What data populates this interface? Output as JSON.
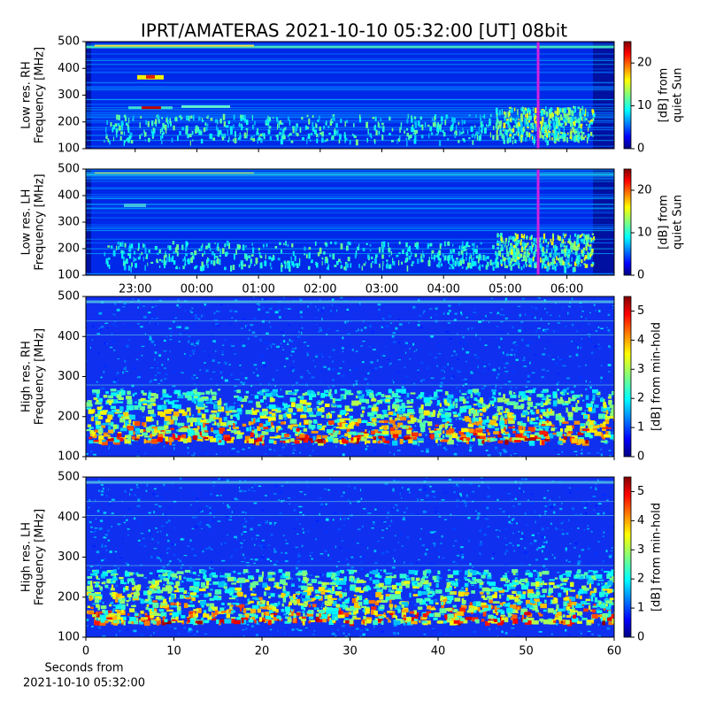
{
  "title": "IPRT/AMATERAS 2021-10-10 05:32:00 [UT]   08bit",
  "chart_data": [
    {
      "type": "heatmap",
      "ylabel": [
        "Low res. RH",
        "Frequency [MHz]"
      ],
      "ylim": [
        100,
        500
      ],
      "yticks": [
        100,
        200,
        300,
        400,
        500
      ],
      "xlim": [
        "22:12",
        "06:46"
      ],
      "colorbar_label": [
        "[dB] from",
        "quiet Sun"
      ],
      "clim": [
        0,
        25
      ],
      "cticks": [
        0,
        10,
        20
      ],
      "colormap": "jet",
      "marker": {
        "x": "05:32",
        "color": "#d020e0"
      }
    },
    {
      "type": "heatmap",
      "ylabel": [
        "Low res. LH",
        "Frequency [MHz]"
      ],
      "ylim": [
        100,
        500
      ],
      "yticks": [
        100,
        200,
        300,
        400,
        500
      ],
      "xlim": [
        "22:12",
        "06:46"
      ],
      "xticks": [
        "23:00",
        "00:00",
        "01:00",
        "02:00",
        "03:00",
        "04:00",
        "05:00",
        "06:00"
      ],
      "colorbar_label": [
        "[dB] from",
        "quiet Sun"
      ],
      "clim": [
        0,
        25
      ],
      "cticks": [
        0,
        10,
        20
      ],
      "colormap": "jet",
      "marker": {
        "x": "05:32",
        "color": "#d020e0"
      }
    },
    {
      "type": "heatmap",
      "ylabel": [
        "High res. RH",
        "Frequency [MHz]"
      ],
      "ylim": [
        100,
        500
      ],
      "yticks": [
        100,
        200,
        300,
        400,
        500
      ],
      "xlim": [
        0,
        60
      ],
      "colorbar_label": [
        "[dB] from min-hold"
      ],
      "clim": [
        0,
        5.5
      ],
      "cticks": [
        0,
        1,
        2,
        3,
        4,
        5
      ],
      "colormap": "jet"
    },
    {
      "type": "heatmap",
      "ylabel": [
        "High res. LH",
        "Frequency [MHz]"
      ],
      "ylim": [
        100,
        500
      ],
      "yticks": [
        100,
        200,
        300,
        400,
        500
      ],
      "xlim": [
        0,
        60
      ],
      "xticks": [
        0,
        10,
        20,
        30,
        40,
        50,
        60
      ],
      "xlabel": [
        "Seconds from",
        "2021-10-10 05:32:00"
      ],
      "colorbar_label": [
        "[dB] from min-hold"
      ],
      "clim": [
        0,
        5.5
      ],
      "cticks": [
        0,
        1,
        2,
        3,
        4,
        5
      ],
      "colormap": "jet"
    }
  ]
}
